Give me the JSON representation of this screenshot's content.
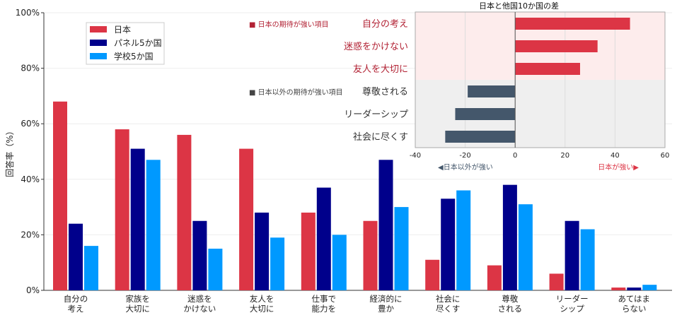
{
  "chart_data": [
    {
      "type": "bar",
      "ylabel": "回答率（%）",
      "ylim": [
        0,
        100
      ],
      "yticks": [
        "0%",
        "20%",
        "40%",
        "60%",
        "80%",
        "100%"
      ],
      "grid": true,
      "legend_placement": "top-left",
      "categories": [
        "自分の\n考え",
        "家族を\n大切に",
        "迷惑を\nかけない",
        "友人を\n大切に",
        "仕事で\n能力を",
        "経済的に\n豊か",
        "社会に\n尽くす",
        "尊敬\nされる",
        "リーダー\nシップ",
        "あてはま\nらない"
      ],
      "series": [
        {
          "name": "日本",
          "color": "#dc3545",
          "values": [
            68,
            58,
            56,
            51,
            28,
            25,
            11,
            9,
            6,
            1
          ]
        },
        {
          "name": "パネル5か国",
          "color": "#00008b",
          "values": [
            24,
            51,
            25,
            28,
            37,
            47,
            33,
            38,
            25,
            1
          ]
        },
        {
          "name": "学校5か国",
          "color": "#0099ff",
          "values": [
            16,
            47,
            15,
            19,
            20,
            30,
            36,
            31,
            22,
            2
          ]
        }
      ],
      "annotations": [
        {
          "text": "■ 日本の期待が強い項目",
          "color": "#b22234"
        },
        {
          "text": "■ 日本以外の期待が強い項目",
          "color": "#444444"
        }
      ]
    },
    {
      "type": "bar",
      "orientation": "horizontal",
      "title": "日本と他国10か国の差",
      "xlim": [
        -40,
        60
      ],
      "xticks": [
        "-40",
        "-20",
        "0",
        "20",
        "40",
        "60"
      ],
      "grid": true,
      "categories": [
        "自分の考え",
        "迷惑をかけない",
        "友人を大切に",
        "尊敬される",
        "リーダーシップ",
        "社会に尽くす"
      ],
      "values": [
        46,
        33,
        26,
        -19,
        -24,
        -28
      ],
      "positive_color": "#dc3545",
      "negative_color": "#44576b",
      "label_positive_color": "#b22234",
      "label_negative_color": "#333333",
      "left_note": "◀日本以外が強い",
      "right_note": "日本が強い▶"
    }
  ]
}
